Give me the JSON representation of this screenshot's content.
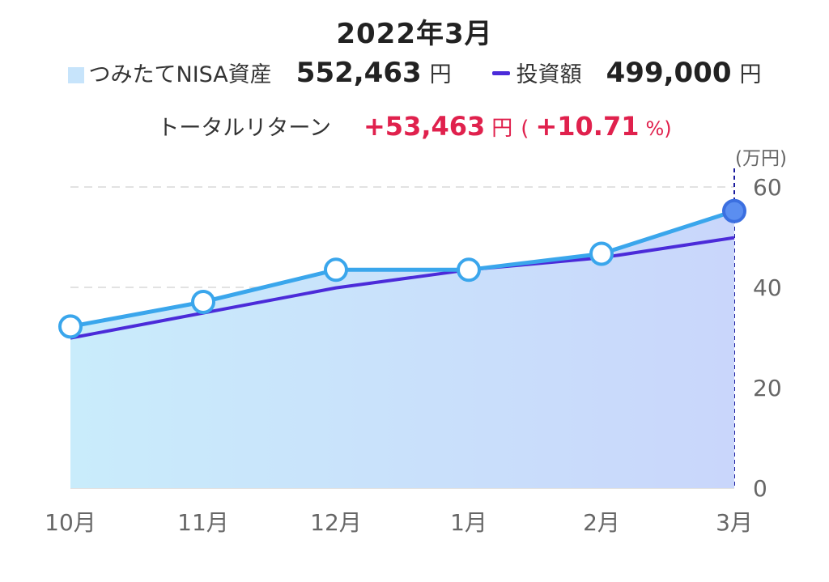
{
  "title": "2022年3月",
  "legend": {
    "asset_label": "つみたてNISA資産",
    "asset_value": "552,463",
    "asset_unit": "円",
    "invest_label": "投資額",
    "invest_value": "499,000",
    "invest_unit": "円"
  },
  "total_return": {
    "label": "トータルリターン",
    "value": "+53,463",
    "unit": "円",
    "paren_open": "(",
    "percent": "+10.71",
    "percent_unit": "%)"
  },
  "colors": {
    "asset_line": "#3aa6ec",
    "invest_line": "#4b2bd9",
    "area_fill_left": "#c9ecfb",
    "area_fill_right": "#c9d6fb",
    "return_text": "#e0214d",
    "current_marker_line": "#1a1a9e"
  },
  "chart_data": {
    "type": "line",
    "title": "2022年3月",
    "y_unit_label": "(万円)",
    "categories": [
      "10月",
      "11月",
      "12月",
      "1月",
      "2月",
      "3月"
    ],
    "yticks": [
      0,
      20,
      40,
      60
    ],
    "ylim": [
      0,
      60
    ],
    "grid": true,
    "series": [
      {
        "name": "つみたてNISA資産",
        "style": "area-line-markers",
        "values": [
          32.2,
          37.1,
          43.5,
          43.5,
          46.7,
          55.2
        ]
      },
      {
        "name": "投資額",
        "style": "line",
        "values": [
          29.9,
          34.9,
          39.9,
          43.5,
          45.9,
          49.9
        ]
      }
    ],
    "highlight_category": "3月"
  }
}
